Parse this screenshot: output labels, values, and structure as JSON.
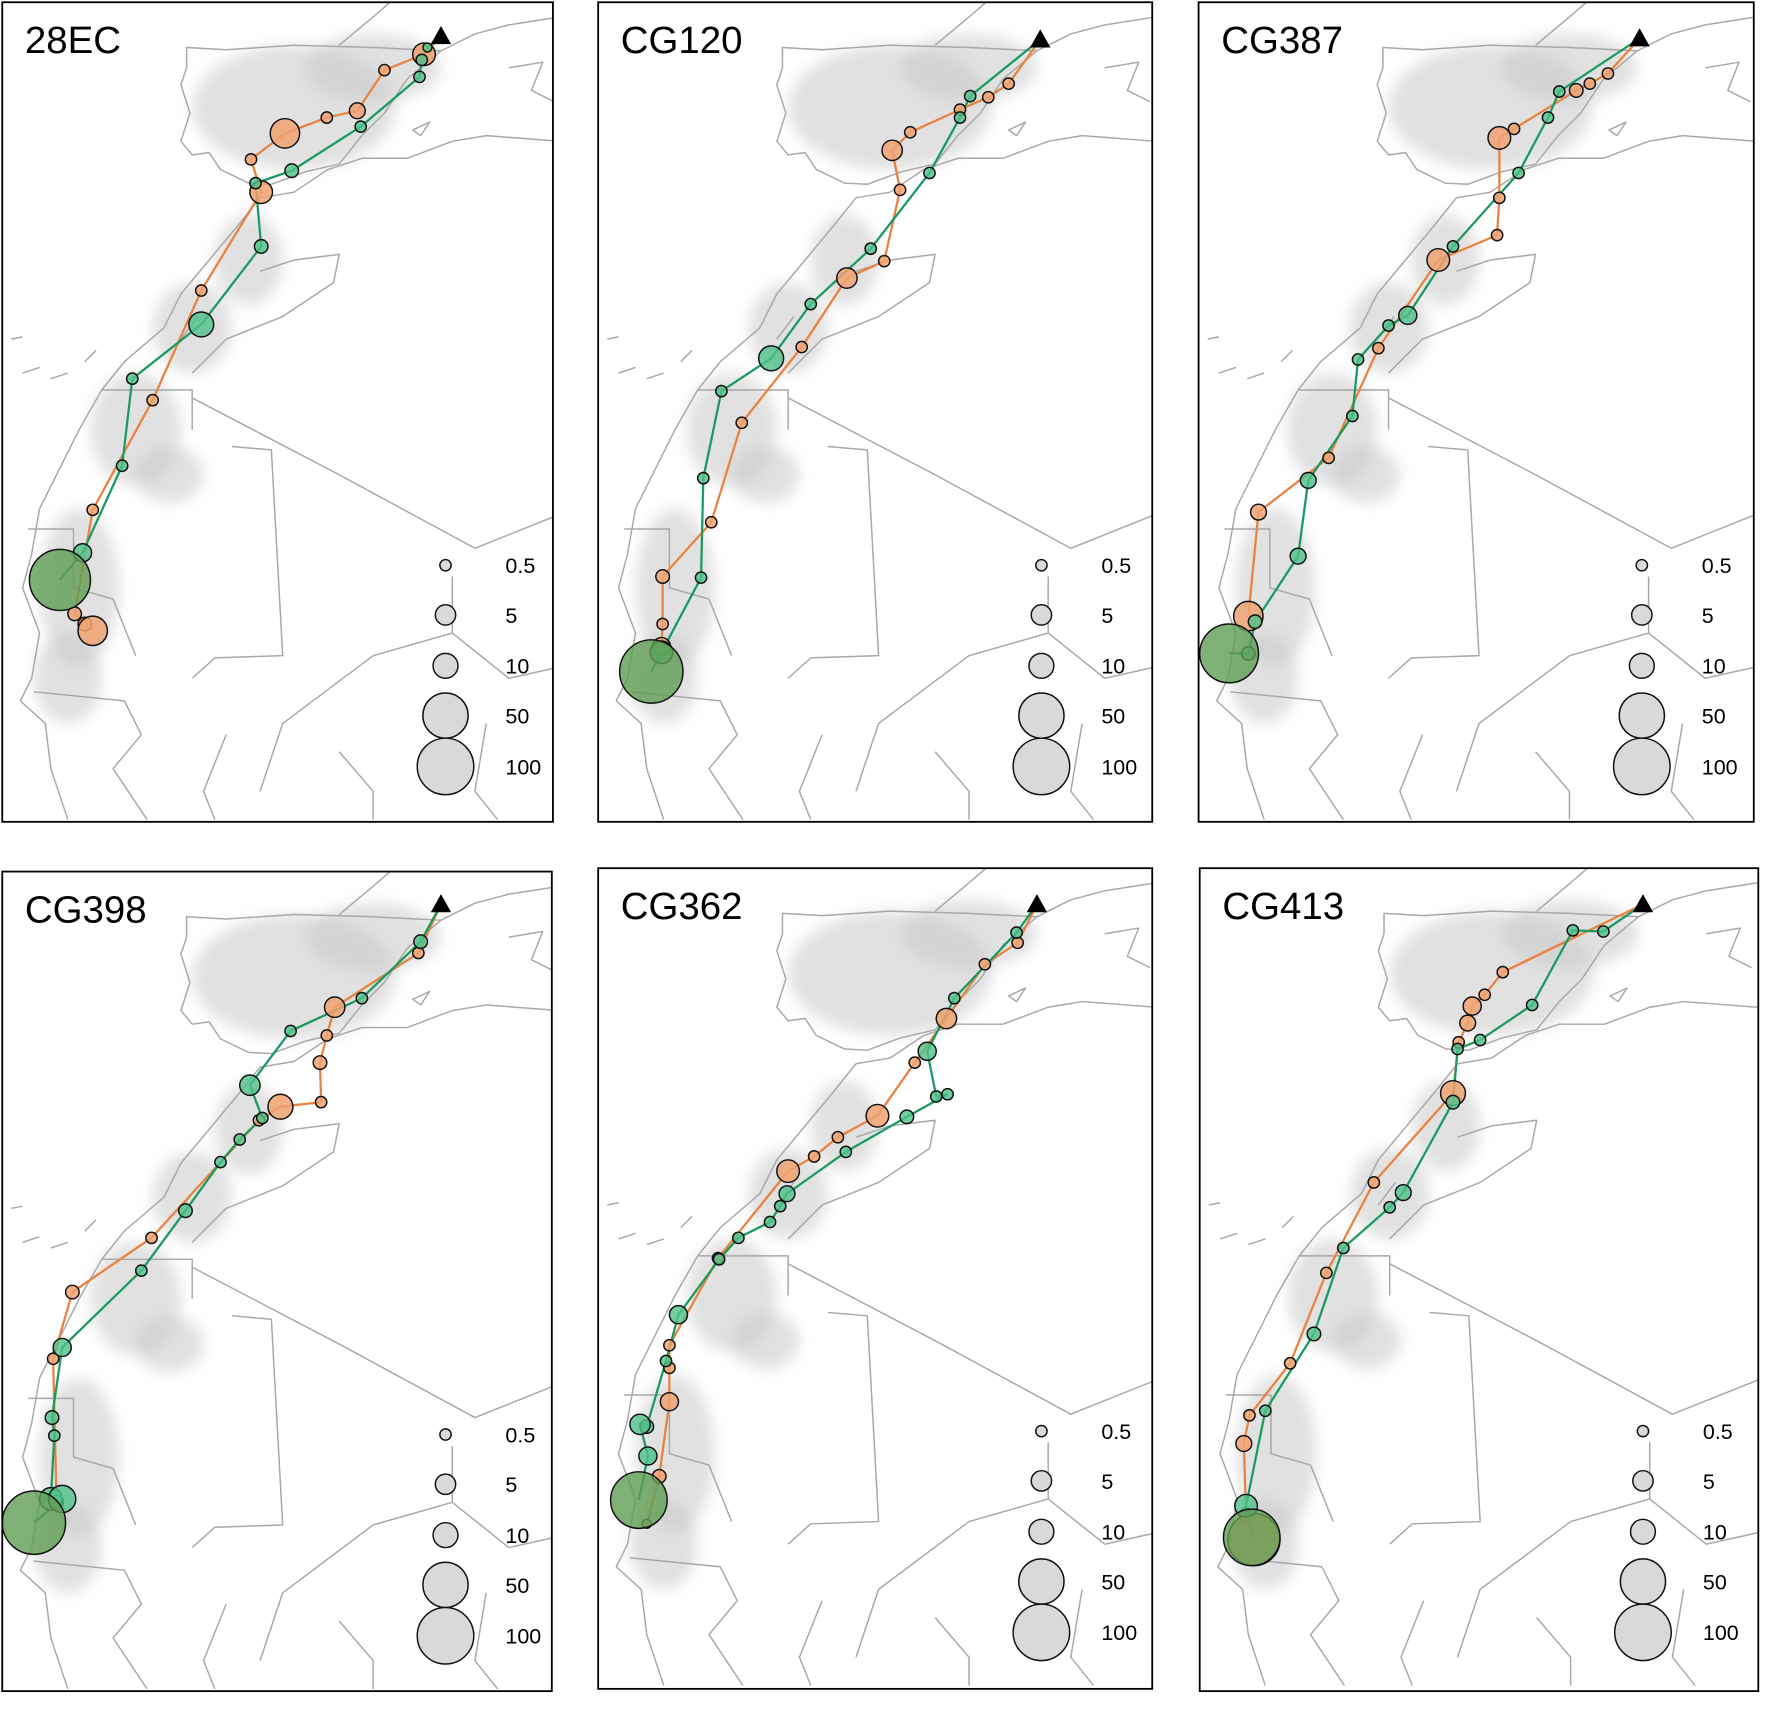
{
  "colors": {
    "route_a_line": "#e8823e",
    "route_a_fill": "#f0a272",
    "route_b_line": "#1a9a60",
    "route_b_fill": "#4fc18a",
    "large_stop_fill": "#5f9e55",
    "land_border": "#a8a8a8",
    "occurrence_shading": "#c8c8c8"
  },
  "icons": {
    "start_marker": "triangle-icon"
  },
  "legend": {
    "values": [
      "0.5",
      "5",
      "10",
      "50",
      "100"
    ]
  },
  "panels": [
    {
      "label": "28EC"
    },
    {
      "label": "CG120"
    },
    {
      "label": "CG387"
    },
    {
      "label": "CG398"
    },
    {
      "label": "CG362"
    },
    {
      "label": "CG413"
    }
  ]
}
